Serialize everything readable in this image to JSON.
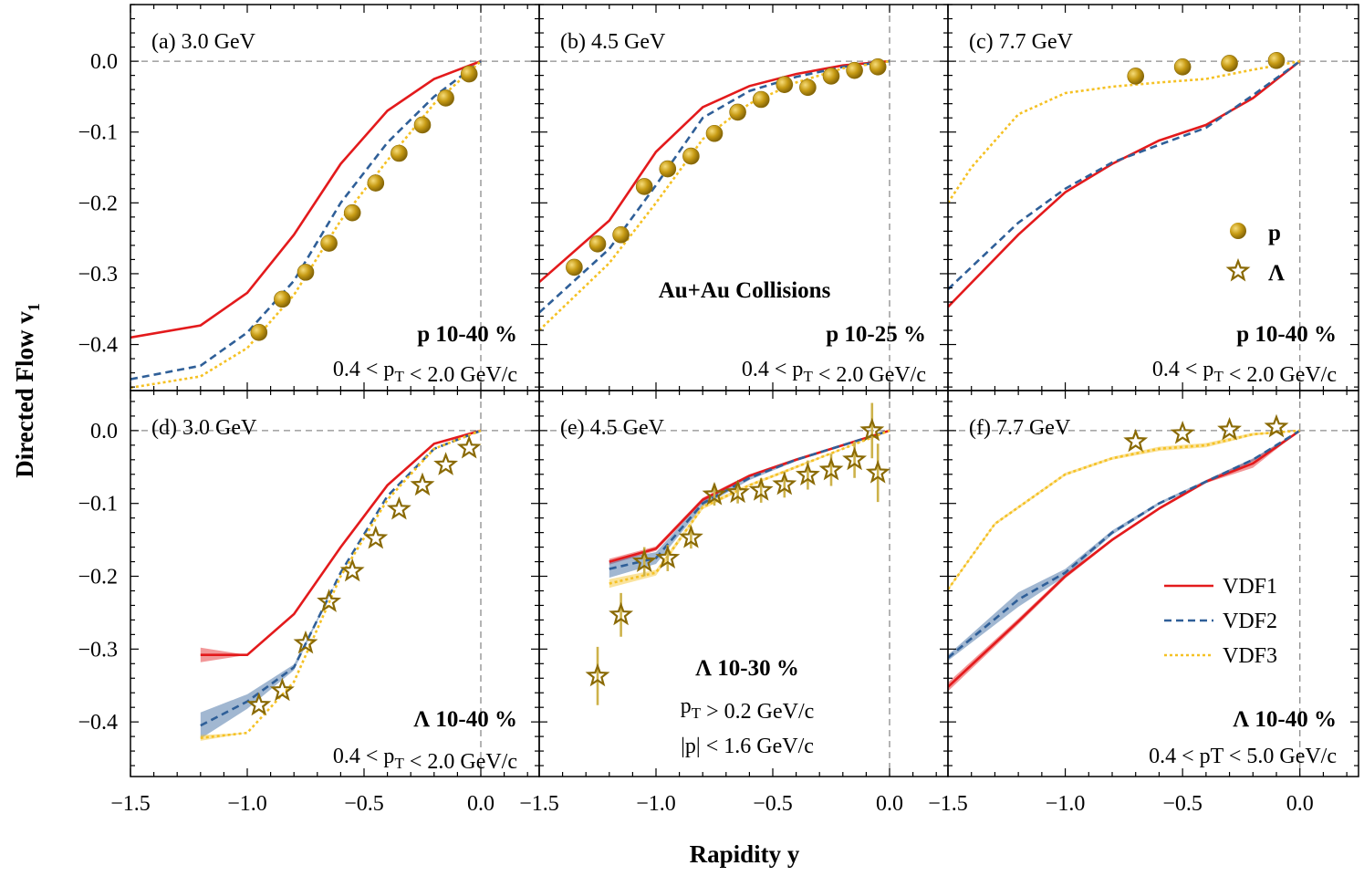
{
  "figure": {
    "ylabel": "Directed Flow v",
    "ylabel_sub": "1",
    "xlabel": "Rapidity y",
    "legend_markers": [
      {
        "name": "p",
        "marker": "circle"
      },
      {
        "name": "Λ",
        "marker": "star"
      }
    ],
    "legend_lines": [
      {
        "name": "VDF1",
        "color": "#e31a1c",
        "dash": "solid"
      },
      {
        "name": "VDF2",
        "color": "#2f5f98",
        "dash": "dashed"
      },
      {
        "name": "VDF3",
        "color": "#f5c124",
        "dash": "dotted"
      }
    ],
    "collision_label": "Au+Au Collisions",
    "marker_color": "#b8900e"
  },
  "chart_data": [
    {
      "type": "line",
      "panel": "a",
      "label": "(a) 3.0 GeV",
      "species_label": "p 10-40 %",
      "cuts": [
        "0.4 < p_T < 2.0 GeV/c"
      ],
      "xlim": [
        -1.5,
        0.25
      ],
      "ylim": [
        -0.465,
        0.08
      ],
      "xticks": [
        -1.5,
        -1.0,
        -0.5,
        0.0
      ],
      "xtick_labels": [
        "−1.5",
        "−1.0",
        "−0.5",
        "0.0"
      ],
      "yticks": [
        0.0,
        -0.1,
        -0.2,
        -0.3,
        -0.4
      ],
      "ytick_labels": [
        "0.0",
        "−0.1",
        "−0.2",
        "−0.3",
        "−0.4"
      ],
      "series": [
        {
          "name": "VDF1",
          "x": [
            -1.5,
            -1.2,
            -1.0,
            -0.8,
            -0.6,
            -0.4,
            -0.2,
            0.0
          ],
          "y": [
            -0.39,
            -0.373,
            -0.327,
            -0.245,
            -0.145,
            -0.07,
            -0.025,
            0.0
          ]
        },
        {
          "name": "VDF2",
          "x": [
            -1.5,
            -1.2,
            -1.0,
            -0.8,
            -0.6,
            -0.4,
            -0.2,
            0.0
          ],
          "y": [
            -0.449,
            -0.43,
            -0.383,
            -0.31,
            -0.2,
            -0.115,
            -0.05,
            0.0
          ]
        },
        {
          "name": "VDF3",
          "x": [
            -1.5,
            -1.2,
            -1.0,
            -0.8,
            -0.6,
            -0.4,
            -0.2,
            0.0
          ],
          "y": [
            -0.461,
            -0.445,
            -0.405,
            -0.33,
            -0.225,
            -0.14,
            -0.06,
            0.0
          ]
        }
      ],
      "points": {
        "name": "p",
        "x": [
          -0.95,
          -0.85,
          -0.75,
          -0.65,
          -0.55,
          -0.45,
          -0.35,
          -0.25,
          -0.15,
          -0.05
        ],
        "y": [
          -0.383,
          -0.336,
          -0.298,
          -0.257,
          -0.214,
          -0.172,
          -0.13,
          -0.09,
          -0.052,
          -0.018
        ],
        "err": []
      }
    },
    {
      "type": "line",
      "panel": "b",
      "label": "(b) 4.5 GeV",
      "species_label": "p 10-25 %",
      "cuts": [
        "0.4 < p_T < 2.0 GeV/c"
      ],
      "xlim": [
        -1.5,
        0.25
      ],
      "ylim": [
        -0.465,
        0.08
      ],
      "xticks": [
        -1.5,
        -1.0,
        -0.5,
        0.0
      ],
      "xtick_labels": [
        "−1.5",
        "−1.0",
        "−0.5",
        "0.0"
      ],
      "yticks": [
        0.0,
        -0.1,
        -0.2,
        -0.3,
        -0.4
      ],
      "ytick_labels": [
        "0.0",
        "−0.1",
        "−0.2",
        "−0.3",
        "−0.4"
      ],
      "series": [
        {
          "name": "VDF1",
          "x": [
            -1.5,
            -1.2,
            -1.0,
            -0.8,
            -0.6,
            -0.4,
            -0.2,
            0.0
          ],
          "y": [
            -0.312,
            -0.225,
            -0.128,
            -0.065,
            -0.035,
            -0.018,
            -0.006,
            0.0
          ]
        },
        {
          "name": "VDF2",
          "x": [
            -1.5,
            -1.2,
            -1.0,
            -0.8,
            -0.6,
            -0.4,
            -0.2,
            0.0
          ],
          "y": [
            -0.355,
            -0.265,
            -0.175,
            -0.08,
            -0.042,
            -0.022,
            -0.008,
            0.0
          ]
        },
        {
          "name": "VDF3",
          "x": [
            -1.5,
            -1.2,
            -1.0,
            -0.8,
            -0.6,
            -0.4,
            -0.2,
            0.0
          ],
          "y": [
            -0.38,
            -0.285,
            -0.2,
            -0.11,
            -0.06,
            -0.03,
            -0.01,
            0.0
          ]
        }
      ],
      "points": {
        "name": "p",
        "x": [
          -1.35,
          -1.25,
          -1.15,
          -1.05,
          -0.95,
          -0.85,
          -0.75,
          -0.65,
          -0.55,
          -0.45,
          -0.35,
          -0.25,
          -0.15,
          -0.05
        ],
        "y": [
          -0.291,
          -0.258,
          -0.245,
          -0.177,
          -0.152,
          -0.134,
          -0.102,
          -0.072,
          -0.054,
          -0.033,
          -0.037,
          -0.021,
          -0.013,
          -0.008
        ],
        "err": []
      }
    },
    {
      "type": "line",
      "panel": "c",
      "label": "(c) 7.7 GeV",
      "species_label": "p 10-40 %",
      "cuts": [
        "0.4 < p_T < 2.0 GeV/c"
      ],
      "xlim": [
        -1.5,
        0.25
      ],
      "ylim": [
        -0.465,
        0.08
      ],
      "xticks": [
        -1.5,
        -1.0,
        -0.5,
        0.0
      ],
      "xtick_labels": [
        "−1.5",
        "−1.0",
        "−0.5",
        "0.0"
      ],
      "yticks": [
        0.0,
        -0.1,
        -0.2,
        -0.3,
        -0.4
      ],
      "ytick_labels": [
        "0.0",
        "−0.1",
        "−0.2",
        "−0.3",
        "−0.4"
      ],
      "series": [
        {
          "name": "VDF1",
          "x": [
            -1.5,
            -1.2,
            -1.0,
            -0.8,
            -0.6,
            -0.4,
            -0.2,
            0.0
          ],
          "y": [
            -0.347,
            -0.245,
            -0.185,
            -0.145,
            -0.112,
            -0.09,
            -0.052,
            0.0
          ]
        },
        {
          "name": "VDF2",
          "x": [
            -1.5,
            -1.2,
            -1.0,
            -0.8,
            -0.6,
            -0.4,
            -0.2,
            0.0
          ],
          "y": [
            -0.322,
            -0.228,
            -0.18,
            -0.143,
            -0.118,
            -0.094,
            -0.048,
            0.0
          ]
        },
        {
          "name": "VDF3",
          "x": [
            -1.5,
            -1.4,
            -1.2,
            -1.0,
            -0.8,
            -0.6,
            -0.4,
            -0.2,
            0.0
          ],
          "y": [
            -0.2,
            -0.15,
            -0.075,
            -0.045,
            -0.036,
            -0.03,
            -0.025,
            -0.012,
            0.0
          ]
        }
      ],
      "points": {
        "name": "p",
        "x": [
          -0.7,
          -0.5,
          -0.3,
          -0.1
        ],
        "y": [
          -0.021,
          -0.008,
          -0.003,
          0.001
        ],
        "err": []
      }
    },
    {
      "type": "line",
      "panel": "d",
      "label": "(d) 3.0 GeV",
      "species_label": "Λ 10-40 %",
      "cuts": [
        "0.4 < p_T < 2.0 GeV/c"
      ],
      "xlim": [
        -1.5,
        0.25
      ],
      "ylim": [
        -0.475,
        0.055
      ],
      "xticks": [
        -1.5,
        -1.0,
        -0.5,
        0.0
      ],
      "xtick_labels": [
        "−1.5",
        "−1.0",
        "−0.5",
        "0.0"
      ],
      "yticks": [
        0.0,
        -0.1,
        -0.2,
        -0.3,
        -0.4
      ],
      "ytick_labels": [
        "0.0",
        "−0.1",
        "−0.2",
        "−0.3",
        "−0.4"
      ],
      "series": [
        {
          "name": "VDF1",
          "x": [
            -1.2,
            -1.0,
            -0.8,
            -0.6,
            -0.4,
            -0.2,
            0.0
          ],
          "y": [
            -0.308,
            -0.308,
            -0.252,
            -0.16,
            -0.075,
            -0.018,
            0.0
          ],
          "band": [
            0.01,
            0.0,
            0.0,
            0.0,
            0.0,
            0.0,
            0.0
          ]
        },
        {
          "name": "VDF2",
          "x": [
            -1.2,
            -1.0,
            -0.8,
            -0.6,
            -0.4,
            -0.2,
            0.0
          ],
          "y": [
            -0.405,
            -0.372,
            -0.325,
            -0.195,
            -0.09,
            -0.025,
            0.0
          ],
          "band": [
            0.018,
            0.01,
            0.004,
            0.0,
            0.0,
            0.0,
            0.0
          ]
        },
        {
          "name": "VDF3",
          "x": [
            -1.2,
            -1.0,
            -0.8,
            -0.6,
            -0.4,
            -0.2,
            0.0
          ],
          "y": [
            -0.422,
            -0.415,
            -0.345,
            -0.2,
            -0.095,
            -0.025,
            0.0
          ],
          "band": [
            0.004,
            0.0,
            0.0,
            0.0,
            0.0,
            0.0,
            0.0
          ]
        }
      ],
      "points": {
        "name": "Λ",
        "x": [
          -0.95,
          -0.85,
          -0.75,
          -0.65,
          -0.55,
          -0.45,
          -0.35,
          -0.25,
          -0.15,
          -0.05
        ],
        "y": [
          -0.377,
          -0.357,
          -0.292,
          -0.235,
          -0.193,
          -0.148,
          -0.108,
          -0.075,
          -0.047,
          -0.024
        ],
        "err": []
      }
    },
    {
      "type": "line",
      "panel": "e",
      "label": "(e) 4.5 GeV",
      "species_label": "Λ 10-30 %",
      "cuts": [
        "p_T > 0.2 GeV/c",
        "|p| < 1.6 GeV/c"
      ],
      "xlim": [
        -1.5,
        0.25
      ],
      "ylim": [
        -0.475,
        0.055
      ],
      "xticks": [
        -1.5,
        -1.0,
        -0.5,
        0.0
      ],
      "xtick_labels": [
        "−1.5",
        "−1.0",
        "−0.5",
        "0.0"
      ],
      "yticks": [
        0.0,
        -0.1,
        -0.2,
        -0.3,
        -0.4
      ],
      "ytick_labels": [
        "0.0",
        "−0.1",
        "−0.2",
        "−0.3",
        "−0.4"
      ],
      "series": [
        {
          "name": "VDF1",
          "x": [
            -1.2,
            -1.0,
            -0.8,
            -0.6,
            -0.4,
            -0.2,
            0.0
          ],
          "y": [
            -0.18,
            -0.162,
            -0.095,
            -0.062,
            -0.04,
            -0.02,
            0.0
          ],
          "band": [
            0.004,
            0.003,
            0.003,
            0.002,
            0.002,
            0.001,
            0.0
          ]
        },
        {
          "name": "VDF2",
          "x": [
            -1.2,
            -1.0,
            -0.8,
            -0.6,
            -0.4,
            -0.2,
            0.0
          ],
          "y": [
            -0.19,
            -0.175,
            -0.1,
            -0.065,
            -0.04,
            -0.02,
            0.0
          ],
          "band": [
            0.012,
            0.008,
            0.004,
            0.003,
            0.002,
            0.001,
            0.0
          ]
        },
        {
          "name": "VDF3",
          "x": [
            -1.2,
            -1.0,
            -0.8,
            -0.6,
            -0.4,
            -0.2,
            0.0
          ],
          "y": [
            -0.21,
            -0.195,
            -0.105,
            -0.075,
            -0.05,
            -0.025,
            0.0
          ],
          "band": [
            0.006,
            0.004,
            0.003,
            0.002,
            0.002,
            0.001,
            0.0
          ]
        }
      ],
      "points": {
        "name": "Λ",
        "x": [
          -1.25,
          -1.15,
          -1.05,
          -0.95,
          -0.85,
          -0.75,
          -0.65,
          -0.55,
          -0.45,
          -0.35,
          -0.25,
          -0.15,
          -0.075,
          -0.05
        ],
        "y": [
          -0.337,
          -0.253,
          -0.18,
          -0.175,
          -0.147,
          -0.088,
          -0.085,
          -0.082,
          -0.074,
          -0.061,
          -0.054,
          -0.04,
          0.0,
          -0.058
        ],
        "err": [
          0.04,
          0.03,
          0.02,
          0.018,
          0.015,
          0.015,
          0.015,
          0.017,
          0.018,
          0.02,
          0.022,
          0.025,
          0.038,
          0.04
        ]
      }
    },
    {
      "type": "line",
      "panel": "f",
      "label": "(f) 7.7 GeV",
      "species_label": "Λ 10-40 %",
      "cuts": [
        "0.4 < pT < 5.0 GeV/c"
      ],
      "xlim": [
        -1.5,
        0.25
      ],
      "ylim": [
        -0.475,
        0.055
      ],
      "xticks": [
        -1.5,
        -1.0,
        -0.5,
        0.0
      ],
      "xtick_labels": [
        "−1.5",
        "−1.0",
        "−0.5",
        "0.0"
      ],
      "yticks": [
        0.0,
        -0.1,
        -0.2,
        -0.3,
        -0.4
      ],
      "ytick_labels": [
        "0.0",
        "−0.1",
        "−0.2",
        "−0.3",
        "−0.4"
      ],
      "series": [
        {
          "name": "VDF1",
          "x": [
            -1.5,
            -1.2,
            -1.0,
            -0.8,
            -0.6,
            -0.4,
            -0.2,
            0.0
          ],
          "y": [
            -0.352,
            -0.262,
            -0.2,
            -0.15,
            -0.107,
            -0.07,
            -0.045,
            0.0
          ],
          "band": [
            0.006,
            0.004,
            0.003,
            0.002,
            0.002,
            0.002,
            0.006,
            0.0
          ]
        },
        {
          "name": "VDF2",
          "x": [
            -1.5,
            -1.2,
            -1.0,
            -0.8,
            -0.6,
            -0.4,
            -0.2,
            0.0
          ],
          "y": [
            -0.312,
            -0.232,
            -0.195,
            -0.14,
            -0.1,
            -0.07,
            -0.04,
            0.0
          ],
          "band": [
            0.004,
            0.01,
            0.005,
            0.003,
            0.002,
            0.002,
            0.002,
            0.0
          ]
        },
        {
          "name": "VDF3",
          "x": [
            -1.5,
            -1.3,
            -1.0,
            -0.8,
            -0.6,
            -0.4,
            -0.2,
            0.0
          ],
          "y": [
            -0.218,
            -0.128,
            -0.06,
            -0.038,
            -0.025,
            -0.02,
            -0.005,
            0.0
          ],
          "band": [
            0.002,
            0.002,
            0.002,
            0.002,
            0.003,
            0.003,
            0.002,
            0.0
          ]
        }
      ],
      "points": {
        "name": "Λ",
        "x": [
          -0.7,
          -0.5,
          -0.3,
          -0.1
        ],
        "y": [
          -0.015,
          -0.004,
          0.001,
          0.005
        ],
        "err": []
      }
    }
  ]
}
